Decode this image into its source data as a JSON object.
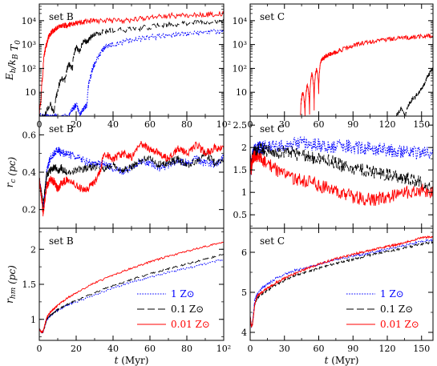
{
  "chart_data": [
    {
      "id": "B_Eb",
      "type": "line",
      "title": "set B",
      "log_y": true,
      "ylim": [
        1,
        50000
      ],
      "xlim": [
        0,
        100
      ],
      "xticks": [
        0,
        20,
        40,
        60,
        80,
        100
      ],
      "xtick_labels": [
        "0",
        "20",
        "40",
        "60",
        "80",
        "10²"
      ],
      "yticks": [
        10,
        100,
        1000,
        10000
      ],
      "ytick_labels": [
        "10",
        "10²",
        "10³",
        "10⁴"
      ],
      "ylabel": "E_b/k_B T_0",
      "grid": false,
      "series": [
        {
          "name": "1 Z⊙",
          "color": "#0000ff",
          "style": "dotted",
          "x": [
            0,
            2,
            6,
            10,
            16,
            18,
            20,
            22,
            24,
            26,
            28,
            30,
            33,
            36,
            40,
            50,
            60,
            70,
            80,
            90,
            100
          ],
          "y": [
            1,
            1,
            1,
            1,
            1,
            2,
            3,
            1,
            2,
            3,
            50,
            150,
            400,
            800,
            1000,
            1500,
            2000,
            2500,
            2800,
            3200,
            3500
          ]
        },
        {
          "name": "0.1 Z⊙",
          "color": "#000000",
          "style": "dashed",
          "x": [
            0,
            3,
            6,
            8,
            10,
            12,
            14,
            16,
            18,
            20,
            22,
            24,
            26,
            28,
            30,
            35,
            40,
            50,
            60,
            70,
            80,
            90,
            100
          ],
          "y": [
            1,
            1,
            3,
            1,
            10,
            40,
            30,
            150,
            100,
            800,
            500,
            1500,
            1200,
            2000,
            2500,
            3500,
            3800,
            4500,
            5500,
            7000,
            8000,
            9000,
            10000
          ]
        },
        {
          "name": "0.01 Z⊙",
          "color": "#ff0000",
          "style": "solid",
          "x": [
            0,
            1,
            2,
            3,
            4,
            5,
            7,
            9,
            12,
            15,
            20,
            25,
            30,
            40,
            50,
            60,
            70,
            80,
            90,
            100
          ],
          "y": [
            1,
            5,
            50,
            500,
            1000,
            2000,
            3500,
            4500,
            6000,
            6500,
            8000,
            9000,
            9500,
            10000,
            11000,
            14000,
            16000,
            17000,
            18000,
            19000
          ]
        }
      ]
    },
    {
      "id": "C_Eb",
      "type": "line",
      "title": "set C",
      "log_y": true,
      "ylim": [
        1,
        50000
      ],
      "xlim": [
        0,
        160
      ],
      "xticks": [
        0,
        30,
        60,
        90,
        120,
        150
      ],
      "xtick_labels": [
        "0",
        "30",
        "60",
        "90",
        "120",
        "150"
      ],
      "yticks": [
        10,
        100,
        1000,
        10000
      ],
      "ytick_labels": [
        "10",
        "10²",
        "10³",
        "10⁴"
      ],
      "ylabel": "",
      "grid": false,
      "series": [
        {
          "name": "0.1 Z⊙",
          "color": "#000000",
          "style": "dashed",
          "x": [
            128,
            132,
            136,
            140,
            144,
            148,
            152,
            156,
            160
          ],
          "y": [
            1,
            2,
            1,
            4,
            6,
            10,
            20,
            50,
            100
          ]
        },
        {
          "name": "0.01 Z⊙",
          "color": "#ff0000",
          "style": "solid",
          "x": [
            44,
            46,
            48,
            50,
            52,
            54,
            56,
            58,
            60,
            62,
            65,
            70,
            75,
            80,
            90,
            100,
            110,
            120,
            130,
            140,
            150,
            160
          ],
          "y": [
            1,
            10,
            1,
            20,
            1,
            60,
            2,
            100,
            10,
            200,
            300,
            400,
            500,
            600,
            900,
            1200,
            1400,
            1600,
            1800,
            2000,
            2200,
            2400
          ]
        }
      ]
    },
    {
      "id": "B_rc",
      "type": "line",
      "title": "set B",
      "log_y": false,
      "ylim": [
        0.1,
        0.7
      ],
      "xlim": [
        0,
        100
      ],
      "xticks": [
        0,
        20,
        40,
        60,
        80,
        100
      ],
      "xtick_labels": [],
      "yticks": [
        0.2,
        0.4,
        0.6
      ],
      "ytick_labels": [
        "0.2",
        "0.4",
        "0.6"
      ],
      "ylabel": "r_c (pc)",
      "grid": false,
      "series": [
        {
          "name": "1 Z⊙",
          "color": "#0000ff",
          "style": "dotted",
          "x": [
            0,
            1,
            2,
            3,
            4,
            6,
            8,
            10,
            12,
            15,
            20,
            25,
            30,
            35,
            40,
            45,
            50,
            55,
            60,
            65,
            70,
            75,
            80,
            85,
            90,
            95,
            100
          ],
          "y": [
            0.36,
            0.3,
            0.2,
            0.28,
            0.4,
            0.48,
            0.5,
            0.52,
            0.5,
            0.5,
            0.48,
            0.46,
            0.44,
            0.45,
            0.42,
            0.4,
            0.43,
            0.46,
            0.45,
            0.42,
            0.44,
            0.46,
            0.45,
            0.47,
            0.45,
            0.44,
            0.48
          ]
        },
        {
          "name": "0.1 Z⊙",
          "color": "#000000",
          "style": "dashed",
          "x": [
            0,
            1,
            2,
            3,
            4,
            6,
            8,
            10,
            12,
            15,
            20,
            25,
            30,
            35,
            40,
            45,
            50,
            55,
            60,
            65,
            70,
            75,
            80,
            85,
            90,
            95,
            100
          ],
          "y": [
            0.36,
            0.3,
            0.22,
            0.3,
            0.38,
            0.41,
            0.43,
            0.41,
            0.42,
            0.4,
            0.41,
            0.42,
            0.43,
            0.42,
            0.44,
            0.41,
            0.43,
            0.46,
            0.48,
            0.44,
            0.45,
            0.47,
            0.44,
            0.46,
            0.5,
            0.45,
            0.47
          ]
        },
        {
          "name": "0.01 Z⊙",
          "color": "#ff0000",
          "style": "solid",
          "x": [
            0,
            1,
            2,
            3,
            4,
            6,
            8,
            10,
            12,
            15,
            20,
            25,
            30,
            33,
            35,
            40,
            45,
            50,
            55,
            60,
            65,
            70,
            75,
            80,
            85,
            90,
            95,
            100
          ],
          "y": [
            0.36,
            0.28,
            0.18,
            0.25,
            0.33,
            0.36,
            0.35,
            0.31,
            0.34,
            0.36,
            0.33,
            0.3,
            0.35,
            0.4,
            0.5,
            0.47,
            0.5,
            0.48,
            0.55,
            0.52,
            0.5,
            0.47,
            0.53,
            0.5,
            0.55,
            0.5,
            0.53,
            0.52
          ]
        }
      ]
    },
    {
      "id": "C_rc",
      "type": "line",
      "title": "set C",
      "log_y": false,
      "ylim": [
        0.2,
        2.7
      ],
      "xlim": [
        0,
        160
      ],
      "xticks": [
        0,
        30,
        60,
        90,
        120,
        150
      ],
      "xtick_labels": [],
      "yticks": [
        0.5,
        1,
        1.5,
        2,
        2.5
      ],
      "ytick_labels": [
        "0.5",
        "1",
        "1.5",
        "2",
        "2.5"
      ],
      "ylabel": "",
      "grid": false,
      "series": [
        {
          "name": "1 Z⊙",
          "color": "#0000ff",
          "style": "dotted",
          "x": [
            0,
            1,
            2,
            4,
            8,
            12,
            20,
            30,
            40,
            50,
            60,
            70,
            80,
            90,
            100,
            110,
            120,
            130,
            140,
            150,
            160
          ],
          "y": [
            1.8,
            1.5,
            1.8,
            1.95,
            2.0,
            2.0,
            2.05,
            2.05,
            2.1,
            2.1,
            2.05,
            2.0,
            2.05,
            2.0,
            2.0,
            1.95,
            1.95,
            1.9,
            1.9,
            1.85,
            1.9
          ]
        },
        {
          "name": "0.1 Z⊙",
          "color": "#000000",
          "style": "dashed",
          "x": [
            0,
            1,
            2,
            4,
            8,
            12,
            20,
            30,
            40,
            50,
            60,
            70,
            80,
            90,
            100,
            110,
            120,
            130,
            140,
            150,
            160
          ],
          "y": [
            1.8,
            1.5,
            1.8,
            1.9,
            1.95,
            1.95,
            1.9,
            1.9,
            1.85,
            1.8,
            1.75,
            1.7,
            1.6,
            1.55,
            1.5,
            1.45,
            1.4,
            1.35,
            1.3,
            1.2,
            1.15
          ]
        },
        {
          "name": "0.01 Z⊙",
          "color": "#ff0000",
          "style": "solid",
          "x": [
            0,
            1,
            2,
            4,
            8,
            12,
            20,
            30,
            40,
            50,
            60,
            70,
            80,
            90,
            100,
            110,
            120,
            130,
            140,
            150,
            160
          ],
          "y": [
            1.8,
            1.5,
            1.75,
            1.8,
            1.75,
            1.7,
            1.55,
            1.4,
            1.3,
            1.25,
            1.15,
            1.1,
            1.0,
            0.9,
            0.85,
            0.85,
            0.9,
            0.95,
            1.0,
            1.05,
            1.0
          ]
        }
      ]
    },
    {
      "id": "B_rhm",
      "type": "line",
      "title": "set B",
      "log_y": false,
      "ylim": [
        0.7,
        2.3
      ],
      "xlim": [
        0,
        100
      ],
      "xticks": [
        0,
        20,
        40,
        60,
        80,
        100
      ],
      "xtick_labels": [
        "0",
        "20",
        "40",
        "60",
        "80",
        "10²"
      ],
      "yticks": [
        1,
        1.5,
        2
      ],
      "ytick_labels": [
        "1",
        "1.5",
        "2"
      ],
      "ylabel": "r_hm (pc)",
      "xlabel": "t (Myr)",
      "grid": false,
      "series": [
        {
          "name": "1 Z⊙",
          "color": "#0000ff",
          "style": "dotted",
          "x": [
            0,
            1,
            2,
            3,
            4,
            6,
            8,
            10,
            15,
            20,
            30,
            40,
            50,
            60,
            70,
            80,
            90,
            100
          ],
          "y": [
            0.86,
            0.82,
            0.82,
            0.9,
            1.0,
            1.05,
            1.1,
            1.13,
            1.2,
            1.25,
            1.35,
            1.45,
            1.53,
            1.6,
            1.67,
            1.73,
            1.79,
            1.86
          ]
        },
        {
          "name": "0.1 Z⊙",
          "color": "#000000",
          "style": "dashed",
          "x": [
            0,
            1,
            2,
            3,
            4,
            6,
            8,
            10,
            15,
            20,
            30,
            40,
            50,
            60,
            70,
            80,
            90,
            100
          ],
          "y": [
            0.86,
            0.82,
            0.82,
            0.9,
            1.0,
            1.06,
            1.1,
            1.14,
            1.21,
            1.27,
            1.38,
            1.48,
            1.57,
            1.65,
            1.72,
            1.79,
            1.86,
            1.93
          ]
        },
        {
          "name": "0.01 Z⊙",
          "color": "#ff0000",
          "style": "solid",
          "x": [
            0,
            1,
            2,
            3,
            4,
            6,
            8,
            10,
            15,
            20,
            30,
            40,
            50,
            60,
            70,
            80,
            90,
            100
          ],
          "y": [
            0.86,
            0.82,
            0.82,
            0.92,
            1.02,
            1.1,
            1.15,
            1.2,
            1.3,
            1.38,
            1.52,
            1.63,
            1.73,
            1.82,
            1.9,
            1.97,
            2.04,
            2.1
          ]
        }
      ]
    },
    {
      "id": "C_rhm",
      "type": "line",
      "title": "set C",
      "log_y": false,
      "ylim": [
        3.8,
        6.6
      ],
      "xlim": [
        0,
        160
      ],
      "xticks": [
        0,
        30,
        60,
        90,
        120,
        150
      ],
      "xtick_labels": [
        "0",
        "30",
        "60",
        "90",
        "120",
        "150"
      ],
      "yticks": [
        4,
        5,
        6
      ],
      "ytick_labels": [
        "4",
        "5",
        "6"
      ],
      "ylabel": "",
      "xlabel": "t (Myr)",
      "grid": false,
      "series": [
        {
          "name": "1 Z⊙",
          "color": "#0000ff",
          "style": "dotted",
          "x": [
            0,
            1,
            2,
            3,
            4,
            6,
            10,
            15,
            20,
            30,
            40,
            50,
            60,
            70,
            80,
            90,
            100,
            110,
            120,
            130,
            140,
            150,
            160
          ],
          "y": [
            4.4,
            4.15,
            4.2,
            4.5,
            4.8,
            4.95,
            5.1,
            5.2,
            5.3,
            5.45,
            5.55,
            5.62,
            5.7,
            5.78,
            5.84,
            5.9,
            5.96,
            6.02,
            6.08,
            6.14,
            6.2,
            6.26,
            6.32
          ]
        },
        {
          "name": "0.1 Z⊙",
          "color": "#000000",
          "style": "dashed",
          "x": [
            0,
            1,
            2,
            3,
            4,
            6,
            10,
            15,
            20,
            30,
            40,
            50,
            60,
            70,
            80,
            90,
            100,
            110,
            120,
            130,
            140,
            150,
            160
          ],
          "y": [
            4.4,
            4.15,
            4.2,
            4.45,
            4.7,
            4.85,
            4.95,
            5.05,
            5.15,
            5.3,
            5.42,
            5.52,
            5.6,
            5.68,
            5.75,
            5.82,
            5.9,
            5.96,
            6.02,
            6.08,
            6.14,
            6.2,
            6.26
          ]
        },
        {
          "name": "0.01 Z⊙",
          "color": "#ff0000",
          "style": "solid",
          "x": [
            0,
            1,
            2,
            3,
            4,
            6,
            10,
            15,
            20,
            30,
            40,
            50,
            60,
            70,
            80,
            90,
            100,
            110,
            120,
            130,
            140,
            150,
            160
          ],
          "y": [
            4.4,
            4.15,
            4.2,
            4.45,
            4.7,
            4.9,
            5.0,
            5.1,
            5.2,
            5.35,
            5.48,
            5.6,
            5.7,
            5.8,
            5.88,
            5.95,
            6.02,
            6.08,
            6.14,
            6.2,
            6.28,
            6.36,
            6.4
          ]
        }
      ]
    }
  ],
  "legend": {
    "entries": [
      {
        "text": "1 Z⊙",
        "color": "#0000ff",
        "style": "dotted"
      },
      {
        "text": "0.1 Z⊙",
        "color": "#000000",
        "style": "dashed"
      },
      {
        "text": "0.01 Z⊙",
        "color": "#ff0000",
        "style": "solid"
      }
    ]
  }
}
